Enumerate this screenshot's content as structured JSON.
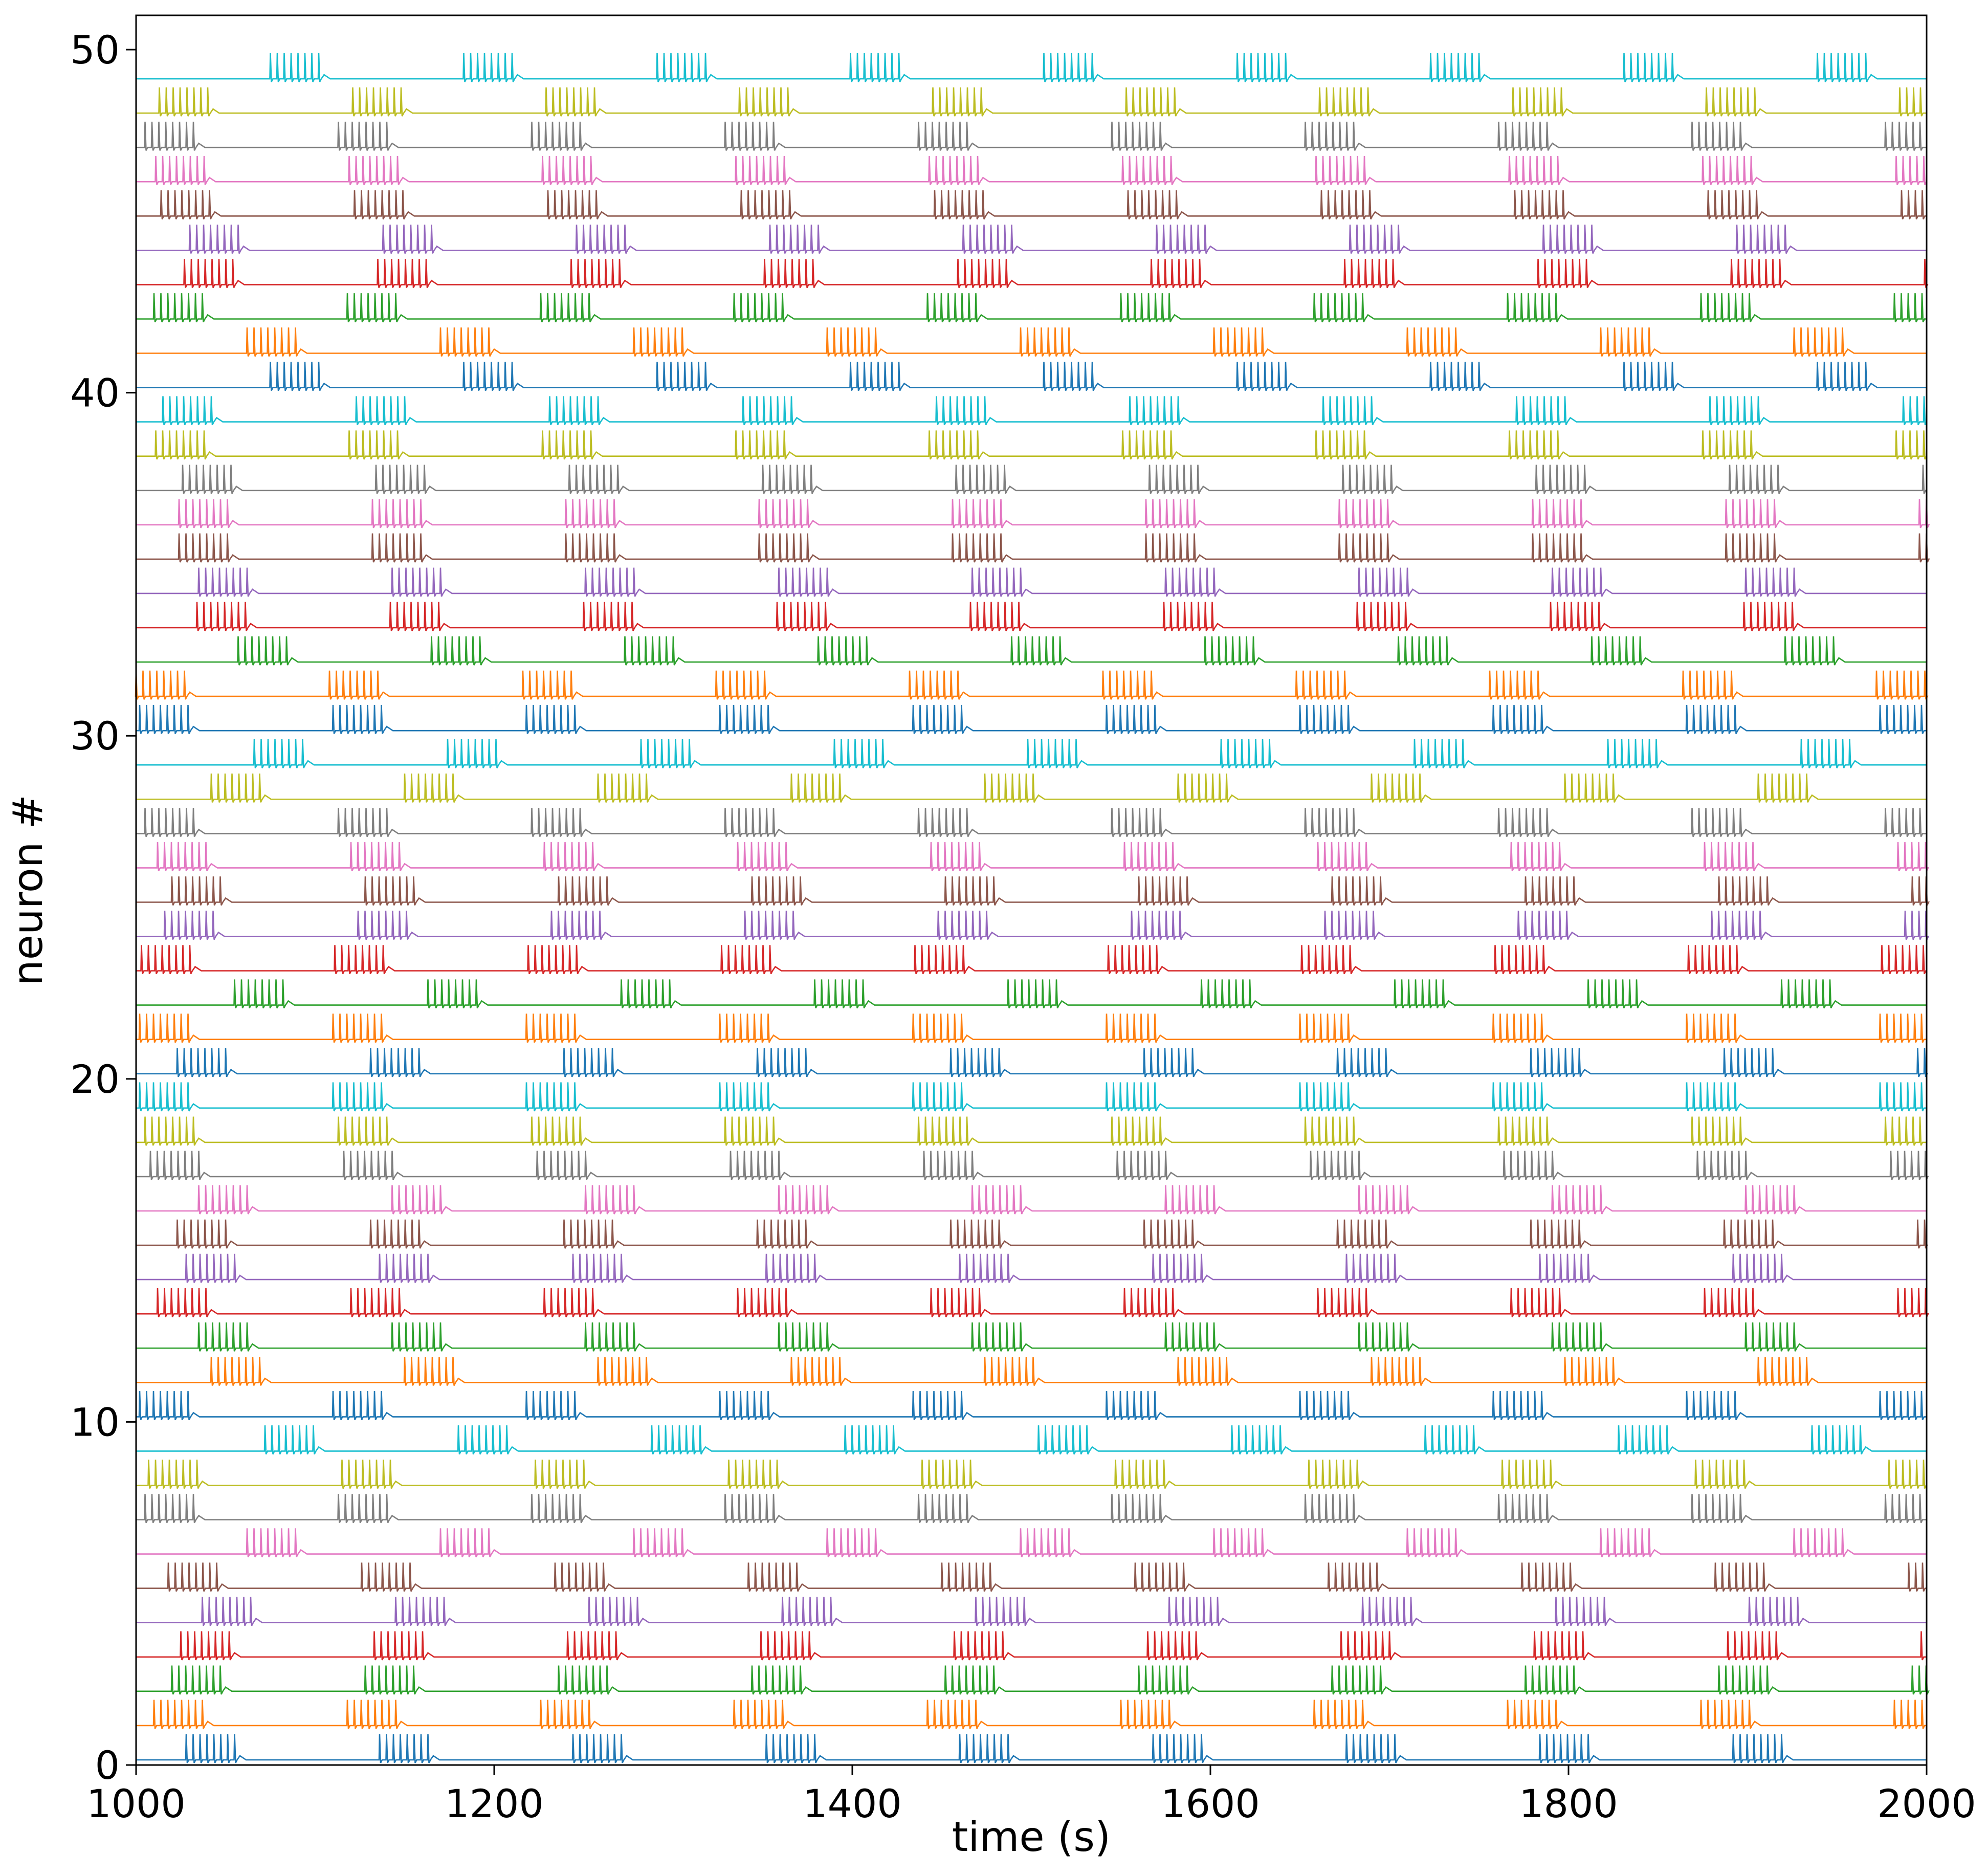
{
  "chart_data": {
    "type": "line",
    "title": "",
    "xlabel": "time (s)",
    "ylabel": "neuron #",
    "xlim": [
      1000,
      2000
    ],
    "ylim": [
      0,
      51
    ],
    "x_ticks": [
      1000,
      1200,
      1400,
      1600,
      1800,
      2000
    ],
    "y_ticks": [
      0,
      10,
      20,
      30,
      40,
      50
    ],
    "grid": false,
    "legend": "none",
    "series_count": 50,
    "series_offset_step": 1,
    "color_cycle": [
      "#1f77b4",
      "#ff7f0e",
      "#2ca02c",
      "#d62728",
      "#9467bd",
      "#8c564b",
      "#e377c2",
      "#7f7f7f",
      "#bcbd22",
      "#17becf"
    ],
    "burst_period": 108,
    "spikes_per_burst": 8,
    "burst_duration": 27,
    "burst_start_times": [
      1028,
      1010,
      1020,
      1025,
      1037,
      1018,
      1062,
      1005,
      1007,
      1072,
      1002,
      1042,
      1035,
      1012,
      1028,
      1023,
      1035,
      1008,
      1005,
      1002,
      1023,
      1002,
      1055,
      1003,
      1016,
      1020,
      1012,
      1005,
      1042,
      1066,
      1002,
      1000,
      1057,
      1034,
      1035,
      1024,
      1024,
      1026,
      1011,
      1015,
      1075,
      1062,
      1010,
      1027,
      1030,
      1014,
      1011,
      1005,
      1013,
      1075
    ]
  }
}
